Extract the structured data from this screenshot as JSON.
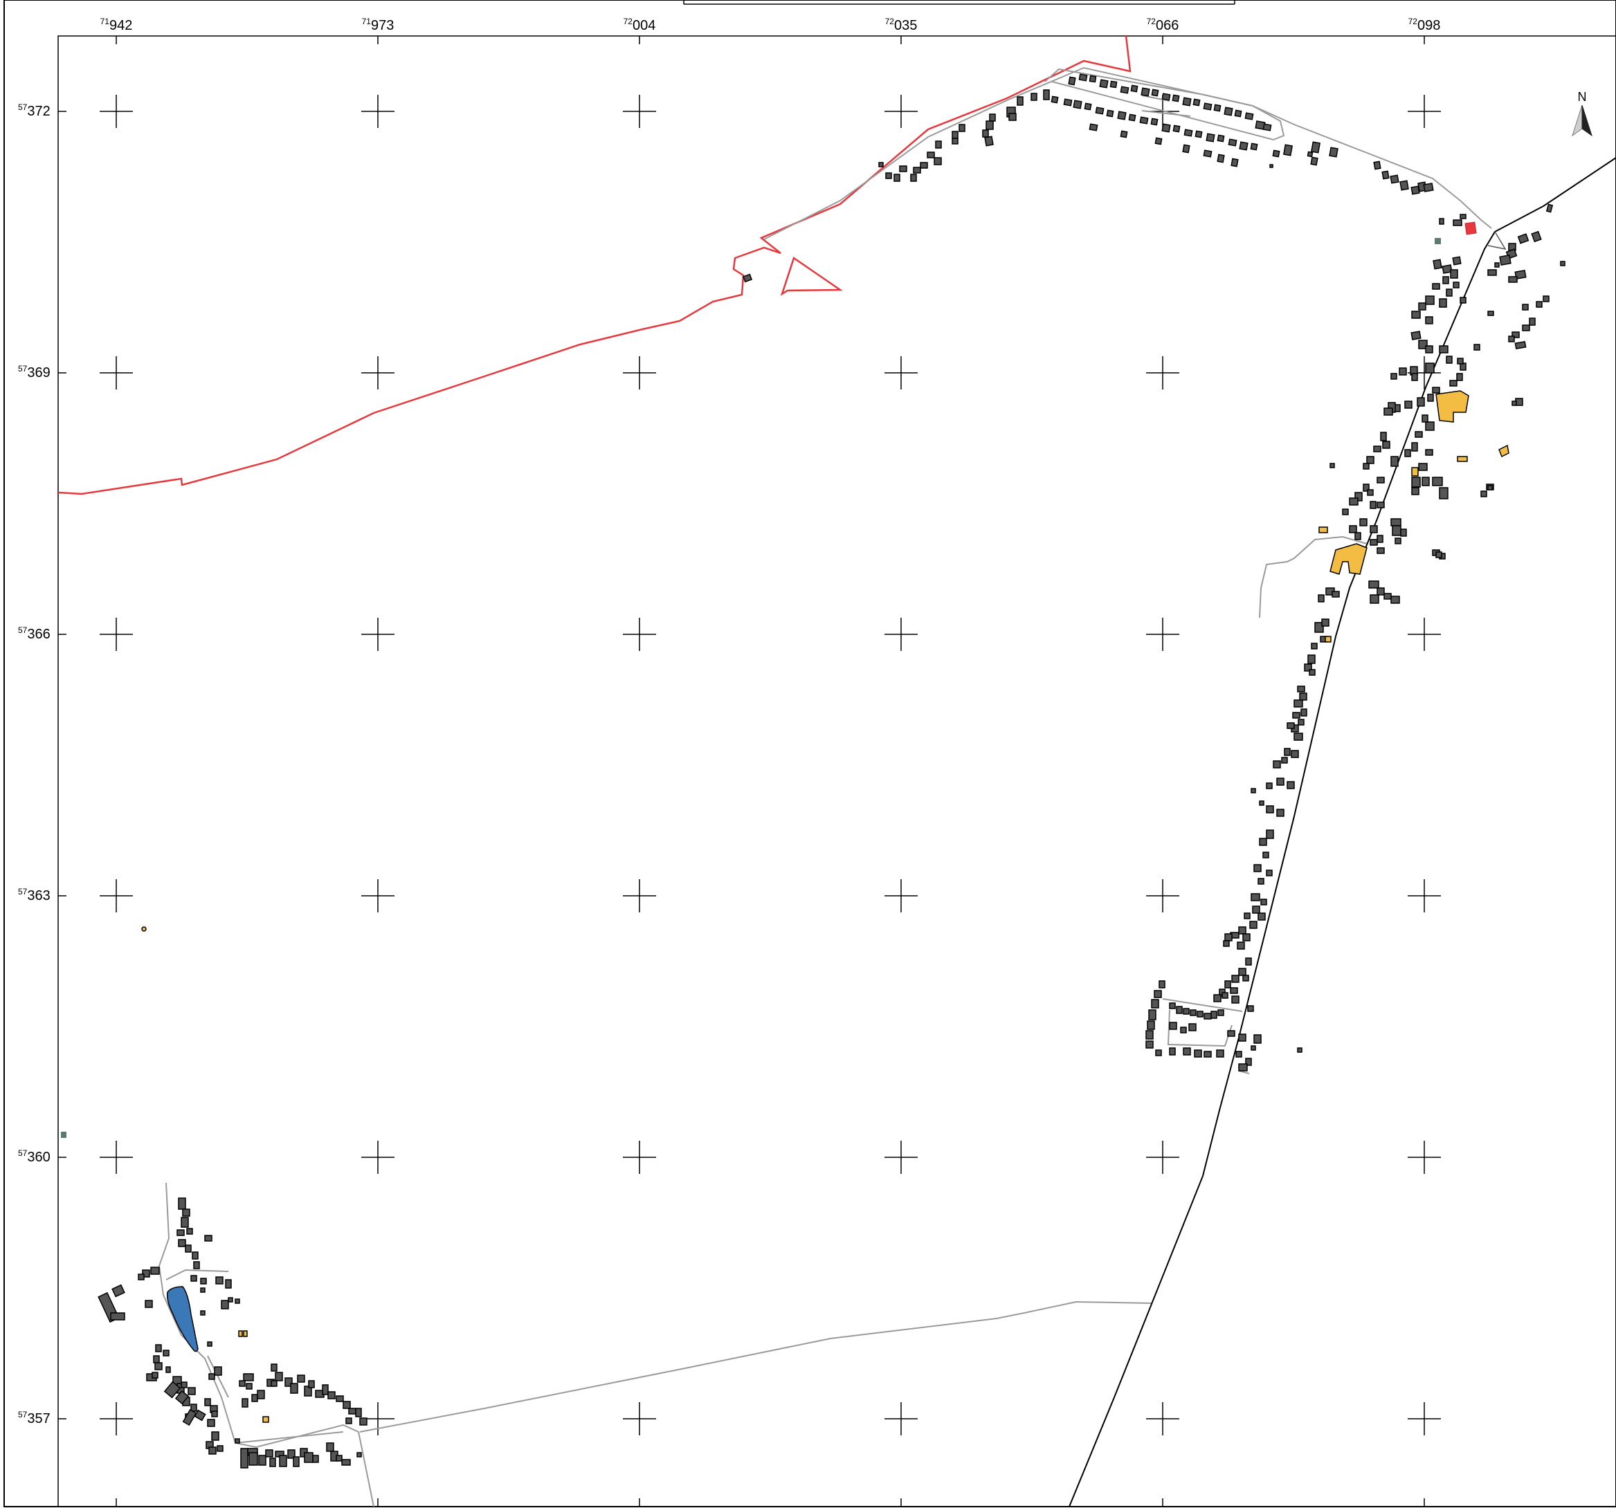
{
  "map": {
    "x_ticks": [
      {
        "prefix": "71",
        "value": "942"
      },
      {
        "prefix": "71",
        "value": "973"
      },
      {
        "prefix": "72",
        "value": "004"
      },
      {
        "prefix": "72",
        "value": "035"
      },
      {
        "prefix": "72",
        "value": "066"
      },
      {
        "prefix": "72",
        "value": "098"
      }
    ],
    "y_ticks": [
      {
        "prefix": "57",
        "value": "372"
      },
      {
        "prefix": "57",
        "value": "369"
      },
      {
        "prefix": "57",
        "value": "366"
      },
      {
        "prefix": "57",
        "value": "363"
      },
      {
        "prefix": "57",
        "value": "360"
      },
      {
        "prefix": "57",
        "value": "357"
      }
    ],
    "north_arrow": {
      "label": "N",
      "icon": "north-arrow-icon"
    },
    "colors": {
      "frame": "#000000",
      "boundary": "#e8383d",
      "road_main": "#000000",
      "road_minor": "#9a9a9a",
      "building": "#555555",
      "building_special": "#f2bd42",
      "building_highlight": "#e8383d",
      "water": "#3a78b8",
      "misc": "#5c7a70"
    }
  }
}
